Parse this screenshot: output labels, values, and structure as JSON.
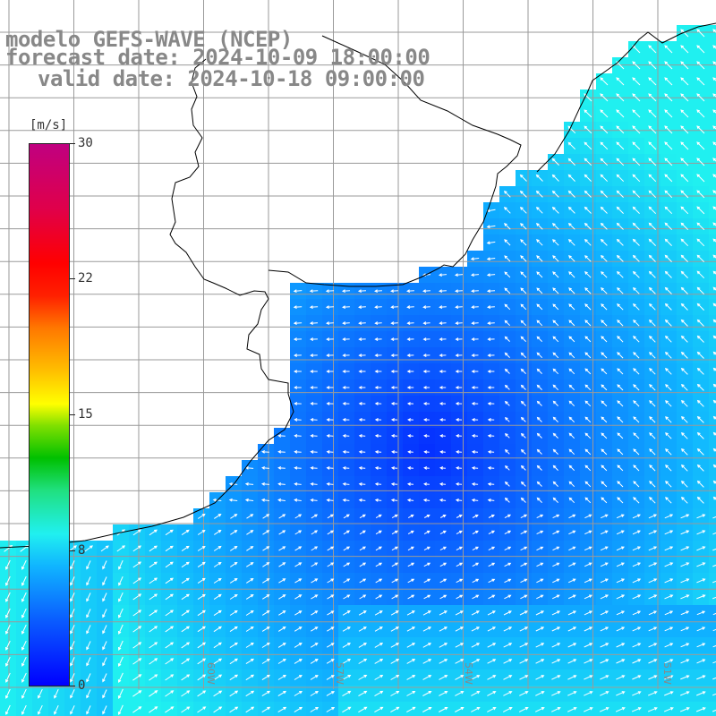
{
  "header": {
    "model_line": "modelo GEFS-WAVE (NCEP)",
    "forecast_line": "forecast date: 2024-10-09 18:00:00",
    "valid_line": "valid date: 2024-10-18 09:00:00"
  },
  "colorbar": {
    "unit": "[m/s]",
    "ticks": [
      "30",
      "22",
      "15",
      "8",
      "0"
    ],
    "tick_values": [
      30,
      22,
      15,
      8,
      0
    ],
    "min": 0,
    "max": 30
  },
  "map": {
    "land_color": "#ffffff",
    "coast_color": "#000000",
    "grid_color": "#9a9a9a",
    "lon_labels": [
      "60W",
      "57W",
      "54W",
      "51W"
    ]
  }
}
